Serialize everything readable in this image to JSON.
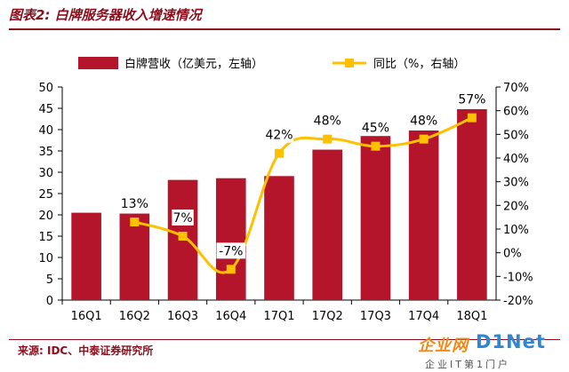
{
  "figure_title": "图表2: 白牌服务器收入增速情况",
  "source": "来源: IDC、中泰证券研究所",
  "watermark": {
    "brand_cn": "企业网",
    "brand_en": "D1Net",
    "tagline": "企业IT第1门户"
  },
  "colors": {
    "bar": "#b5152b",
    "line": "#ffc000",
    "title": "#8b0d1b"
  },
  "chart_data": {
    "type": "bar",
    "categories": [
      "16Q1",
      "16Q2",
      "16Q3",
      "16Q4",
      "17Q1",
      "17Q2",
      "17Q3",
      "17Q4",
      "18Q1"
    ],
    "series": [
      {
        "name": "白牌营收（亿美元，左轴）",
        "type": "bar",
        "axis": "left",
        "values": [
          20.5,
          20.3,
          28.2,
          28.6,
          29.1,
          35.3,
          38.5,
          39.8,
          44.8
        ]
      },
      {
        "name": "同比（%，右轴）",
        "type": "line",
        "axis": "right",
        "values": [
          null,
          13,
          7,
          -7,
          42,
          48,
          45,
          48,
          57
        ],
        "labels": [
          "",
          "13%",
          "7%",
          "-7%",
          "42%",
          "48%",
          "45%",
          "48%",
          "57%"
        ]
      }
    ],
    "left_axis": {
      "min": 0,
      "max": 50,
      "ticks": [
        "0",
        "5",
        "10",
        "15",
        "20",
        "25",
        "30",
        "35",
        "40",
        "45",
        "50"
      ]
    },
    "right_axis": {
      "min": -20,
      "max": 70,
      "ticks": [
        "-20%",
        "-10%",
        "0%",
        "10%",
        "20%",
        "30%",
        "40%",
        "50%",
        "60%",
        "70%"
      ]
    },
    "legend": {
      "position": "top"
    },
    "grid": false
  }
}
